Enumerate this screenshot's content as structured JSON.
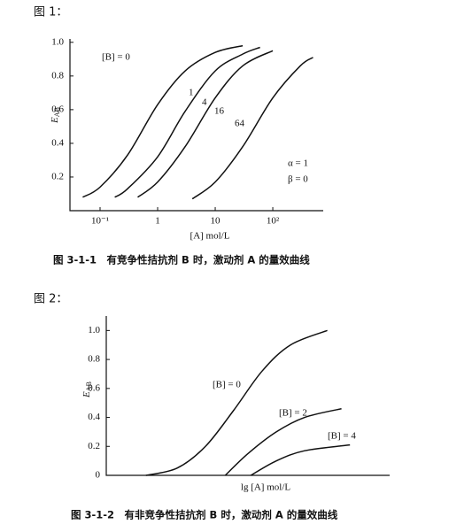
{
  "figure_labels": [
    "图 1：",
    "图 2："
  ],
  "captions": [
    "图 3-1-1　有竞争性拮抗剂 B 时，激动剂 A 的量效曲线",
    "图 3-1-2　有非竞争性拮抗剂 B 时，激动剂 A 的量效曲线"
  ],
  "chart_data": [
    {
      "type": "line",
      "xlabel": "[A] mol/L",
      "ylabel": {
        "text": "E",
        "subscript": "AB"
      },
      "x_scale": "log",
      "xlim": [
        0.03,
        700
      ],
      "xticks": [
        {
          "value": 0.1,
          "label": "10⁻¹"
        },
        1,
        10,
        {
          "value": 100,
          "label": "10²"
        }
      ],
      "ylim": [
        0,
        1.02
      ],
      "yticks": [
        0.2,
        0.4,
        0.6,
        0.8,
        {
          "value": 1.0,
          "label": "1.0"
        }
      ],
      "annotations": [
        "[B] = 0",
        "α = 1",
        "β = 0"
      ],
      "series": [
        {
          "name": "1",
          "color": "#111111",
          "x": [
            0.05,
            0.1,
            0.3,
            1,
            3,
            10,
            30
          ],
          "values": [
            0.08,
            0.14,
            0.33,
            0.63,
            0.83,
            0.94,
            0.98
          ]
        },
        {
          "name": "4",
          "color": "#111111",
          "x": [
            0.18,
            0.3,
            1,
            3,
            10,
            30,
            60
          ],
          "values": [
            0.08,
            0.13,
            0.32,
            0.59,
            0.83,
            0.93,
            0.97
          ]
        },
        {
          "name": "16",
          "color": "#111111",
          "x": [
            0.45,
            1,
            3,
            10,
            30,
            100
          ],
          "values": [
            0.08,
            0.17,
            0.38,
            0.67,
            0.86,
            0.95
          ]
        },
        {
          "name": "64",
          "color": "#111111",
          "x": [
            4,
            10,
            30,
            100,
            300,
            500
          ],
          "values": [
            0.07,
            0.17,
            0.38,
            0.67,
            0.86,
            0.91
          ]
        }
      ]
    },
    {
      "type": "line",
      "xlabel": "lg [A] mol/L",
      "ylabel": {
        "text": "E",
        "subscript": "AB"
      },
      "xlim": [
        0,
        10
      ],
      "ylim": [
        0,
        1.1
      ],
      "yticks": [
        0,
        0.2,
        0.4,
        0.6,
        0.8,
        {
          "value": 1.0,
          "label": "1.0"
        }
      ],
      "series": [
        {
          "name": "[B] = 0",
          "color": "#111111",
          "x": [
            1.4,
            2.5,
            3.5,
            4.5,
            5.5,
            6.5,
            7.8
          ],
          "values": [
            0,
            0.05,
            0.2,
            0.45,
            0.72,
            0.9,
            1.0
          ]
        },
        {
          "name": "[B] = 2",
          "color": "#111111",
          "x": [
            4.2,
            5,
            6,
            7,
            8.3
          ],
          "values": [
            0,
            0.15,
            0.3,
            0.4,
            0.46
          ]
        },
        {
          "name": "[B] = 4",
          "color": "#111111",
          "x": [
            5.1,
            6,
            7,
            8.6
          ],
          "values": [
            0,
            0.1,
            0.17,
            0.21
          ]
        }
      ]
    }
  ]
}
